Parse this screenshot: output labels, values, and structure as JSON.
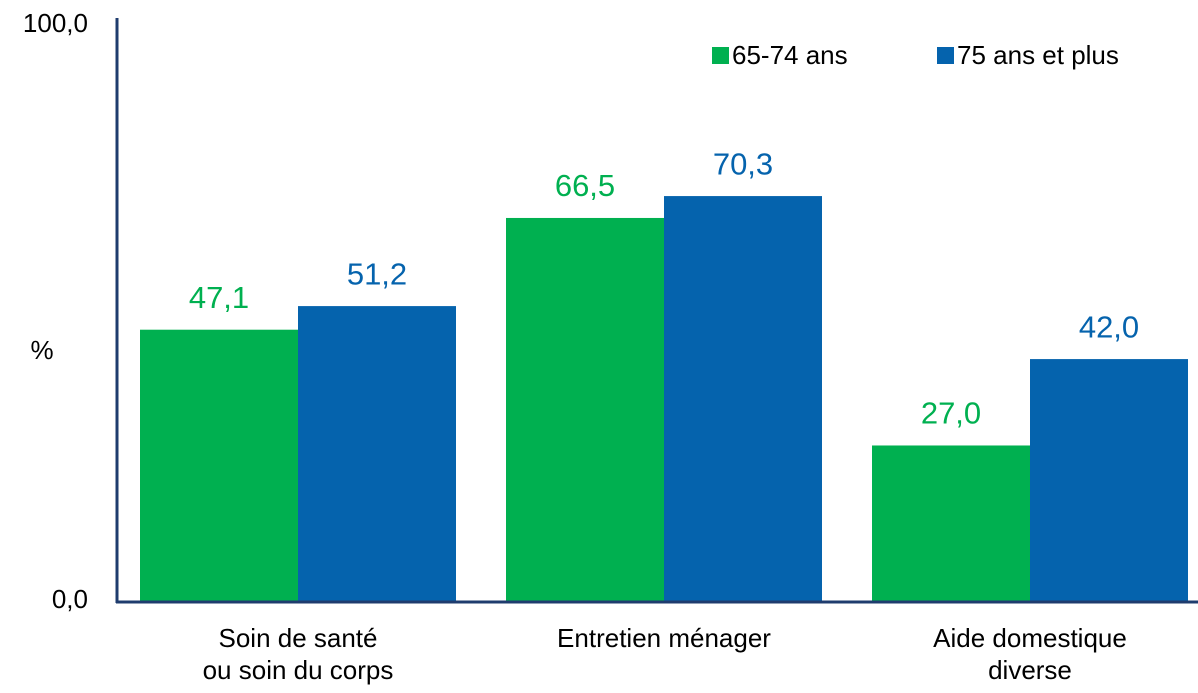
{
  "chart_data": {
    "type": "bar",
    "ylabel": "%",
    "categories": [
      "Soin de santé\nou soin du corps",
      "Entretien ménager",
      "Aide domestique\ndiverse"
    ],
    "series": [
      {
        "name": "65-74 ans",
        "color": "#00b050",
        "values": [
          47.1,
          66.5,
          27.0
        ],
        "value_labels": [
          "47,1",
          "66,5",
          "27,0"
        ]
      },
      {
        "name": "75 ans et plus",
        "color": "#0563ad",
        "values": [
          51.2,
          70.3,
          42.0
        ],
        "value_labels": [
          "51,2",
          "70,3",
          "42,0"
        ]
      }
    ],
    "ylim": [
      0,
      100
    ],
    "yticks": [
      {
        "value": 0,
        "label": "0,0"
      },
      {
        "value": 100,
        "label": "100,0"
      }
    ],
    "grid": false,
    "legend": "top-right"
  }
}
